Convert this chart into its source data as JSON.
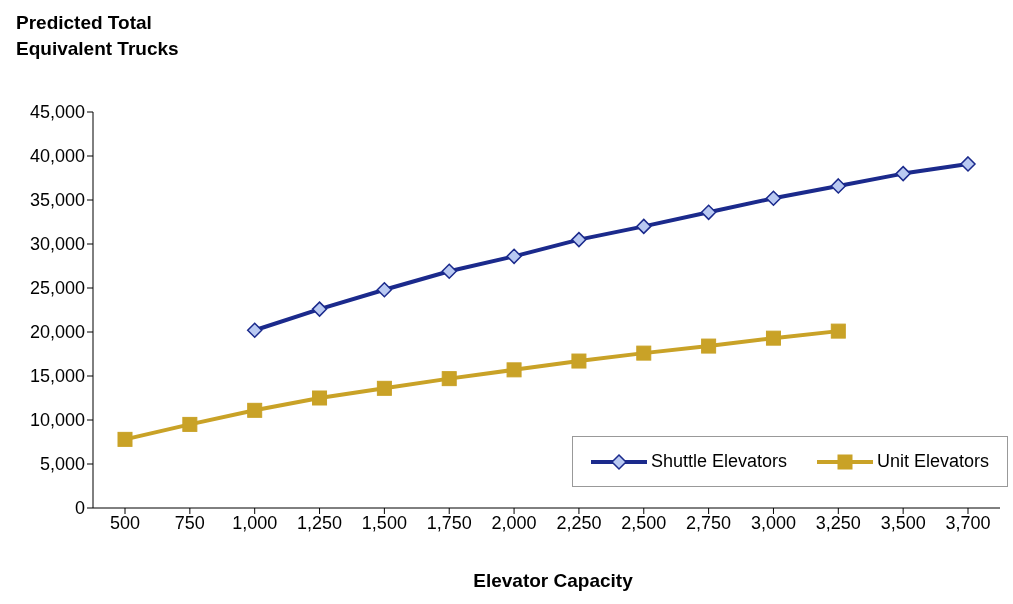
{
  "chart_data": {
    "type": "line",
    "ylabel": "Predicted Total Equivalent Trucks",
    "xlabel": "Elevator Capacity",
    "categories": [
      "500",
      "750",
      "1,000",
      "1,250",
      "1,500",
      "1,750",
      "2,000",
      "2,250",
      "2,500",
      "2,750",
      "3,000",
      "3,250",
      "3,500",
      "3,700"
    ],
    "series": [
      {
        "name": "Shuttle Elevators",
        "color": "#1b2a8c",
        "marker": "diamond",
        "values": [
          null,
          null,
          20200,
          22600,
          24800,
          26900,
          28600,
          30500,
          32000,
          33600,
          35200,
          36600,
          38000,
          39100
        ]
      },
      {
        "name": "Unit Elevators",
        "color": "#c9a227",
        "marker": "square",
        "values": [
          7800,
          9500,
          11100,
          12500,
          13600,
          14700,
          15700,
          16700,
          17600,
          18400,
          19300,
          20100,
          null,
          null
        ]
      }
    ],
    "ylim": [
      0,
      45000
    ],
    "yticks": [
      {
        "value": 0,
        "label": "0"
      },
      {
        "value": 5000,
        "label": "5,000"
      },
      {
        "value": 10000,
        "label": "10,000"
      },
      {
        "value": 15000,
        "label": "15,000"
      },
      {
        "value": 20000,
        "label": "20,000"
      },
      {
        "value": 25000,
        "label": "25,000"
      },
      {
        "value": 30000,
        "label": "30,000"
      },
      {
        "value": 35000,
        "label": "35,000"
      },
      {
        "value": 40000,
        "label": "40,000"
      },
      {
        "value": 45000,
        "label": "45,000"
      }
    ],
    "grid": false,
    "legend": "bottom right",
    "line_style": "solid"
  }
}
